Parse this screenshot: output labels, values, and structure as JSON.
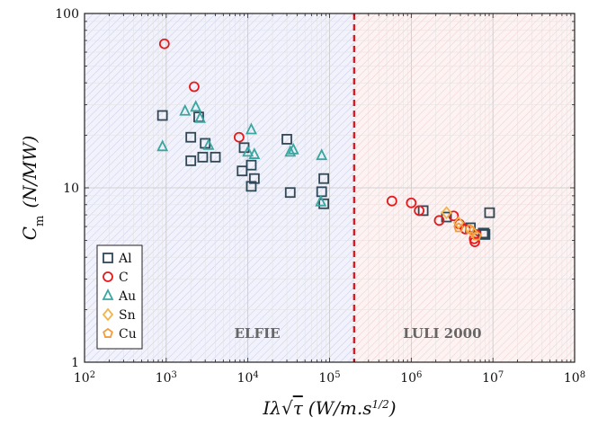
{
  "chart_data": {
    "type": "scatter",
    "title": "",
    "xlabel": "Iλ√τ (W/m.s^1/2)",
    "ylabel": "Cm (N/MW)",
    "xscale": "log",
    "yscale": "log",
    "xlim": [
      100,
      100000000
    ],
    "ylim": [
      1,
      100
    ],
    "x_ticks": [
      {
        "base": "10",
        "exp": "2",
        "value": 100
      },
      {
        "base": "10",
        "exp": "3",
        "value": 1000
      },
      {
        "base": "10",
        "exp": "4",
        "value": 10000
      },
      {
        "base": "10",
        "exp": "5",
        "value": 100000
      },
      {
        "base": "10",
        "exp": "6",
        "value": 1000000
      },
      {
        "base": "10",
        "exp": "7",
        "value": 10000000
      },
      {
        "base": "10",
        "exp": "8",
        "value": 100000000
      }
    ],
    "y_ticks": [
      {
        "label": "1",
        "value": 1
      },
      {
        "label": "10",
        "value": 10
      },
      {
        "label": "100",
        "value": 100
      }
    ],
    "grid": true,
    "legend_position": "bottom-left",
    "threshold_line": {
      "x": 200000,
      "color": "#e0191f",
      "style": "dashed"
    },
    "regions": [
      {
        "label": "ELFIE",
        "x_from": 100,
        "x_to": 200000,
        "color": "#e8eaf6"
      },
      {
        "label": "LULI 2000",
        "x_from": 200000,
        "x_to": 100000000,
        "color": "#fbeaea"
      }
    ],
    "series": [
      {
        "name": "Al",
        "marker": "square",
        "color": "#2f4858",
        "points": [
          [
            900,
            26
          ],
          [
            2000,
            19.5
          ],
          [
            2500,
            25.5
          ],
          [
            3000,
            18
          ],
          [
            2000,
            14.3
          ],
          [
            2800,
            15
          ],
          [
            4000,
            15
          ],
          [
            9000,
            17
          ],
          [
            8500,
            12.5
          ],
          [
            11000,
            13.5
          ],
          [
            12000,
            11.3
          ],
          [
            11000,
            10.2
          ],
          [
            30000,
            19
          ],
          [
            33000,
            9.4
          ],
          [
            80000,
            9.5
          ],
          [
            85000,
            11.3
          ],
          [
            85000,
            8.1
          ],
          [
            1400000,
            7.4
          ],
          [
            2700000,
            6.8
          ],
          [
            5300000,
            5.9
          ],
          [
            7600000,
            5.5
          ],
          [
            7800000,
            5.5
          ],
          [
            9100000,
            7.2
          ],
          [
            8000000,
            5.4
          ]
        ]
      },
      {
        "name": "C",
        "marker": "circle",
        "color": "#e41a1c",
        "points": [
          [
            950,
            67
          ],
          [
            2200,
            38
          ],
          [
            7800,
            19.5
          ],
          [
            580000,
            8.4
          ],
          [
            1000000,
            8.2
          ],
          [
            1250000,
            7.4
          ],
          [
            2200000,
            6.5
          ],
          [
            3300000,
            6.9
          ],
          [
            3900000,
            6.2
          ],
          [
            4600000,
            5.8
          ],
          [
            5900000,
            5.1
          ],
          [
            6200000,
            5.4
          ],
          [
            6000000,
            4.9
          ]
        ]
      },
      {
        "name": "Au",
        "marker": "triangle",
        "color": "#3aa6a0",
        "points": [
          [
            900,
            17.2
          ],
          [
            1700,
            27.5
          ],
          [
            2300,
            29
          ],
          [
            2600,
            25
          ],
          [
            3300,
            17.5
          ],
          [
            10000,
            16
          ],
          [
            11000,
            21.5
          ],
          [
            12000,
            15.5
          ],
          [
            33000,
            16
          ],
          [
            36000,
            16.5
          ],
          [
            80000,
            15.3
          ],
          [
            78000,
            8.3
          ]
        ]
      },
      {
        "name": "Sn",
        "marker": "diamond",
        "color": "#f1b54a",
        "points": [
          [
            2700000,
            7.2
          ],
          [
            3800000,
            6.3
          ],
          [
            5600000,
            5.6
          ]
        ]
      },
      {
        "name": "Cu",
        "marker": "pentagon",
        "color": "#f39c3c",
        "points": [
          [
            3800000,
            5.9
          ],
          [
            5200000,
            5.8
          ],
          [
            6300000,
            5.3
          ]
        ]
      }
    ]
  }
}
